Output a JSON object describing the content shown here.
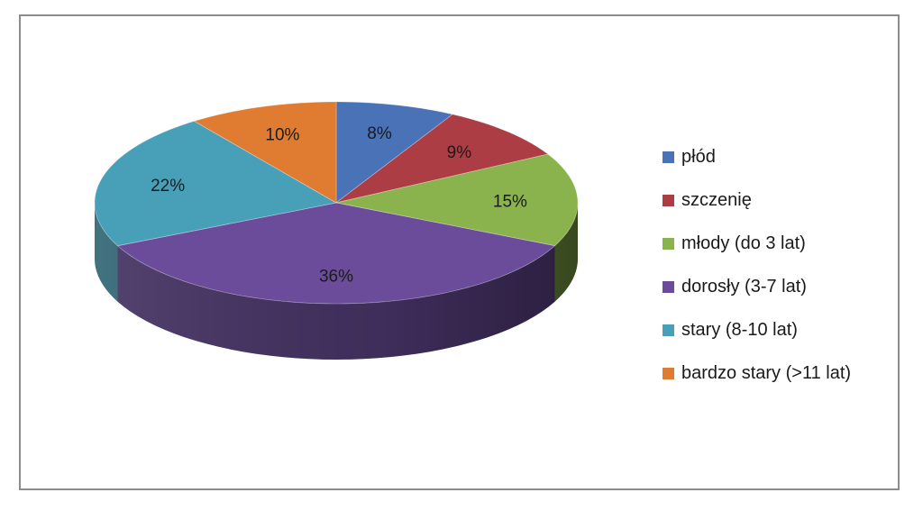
{
  "chart_data": {
    "type": "pie",
    "style": "3d",
    "values": [
      8,
      9,
      15,
      36,
      22,
      10
    ],
    "value_labels": [
      "8%",
      "9%",
      "15%",
      "36%",
      "22%",
      "10%"
    ],
    "categories": [
      "płód",
      "szczenię",
      "młody (do 3 lat)",
      "dorosły (3-7 lat)",
      "stary (8-10 lat)",
      "bardzo stary (>11 lat)"
    ],
    "colors": [
      "#4a72b7",
      "#ad3d44",
      "#8bb34d",
      "#6a4c9a",
      "#48a0b8",
      "#e07c31"
    ],
    "legend_position": "right"
  }
}
